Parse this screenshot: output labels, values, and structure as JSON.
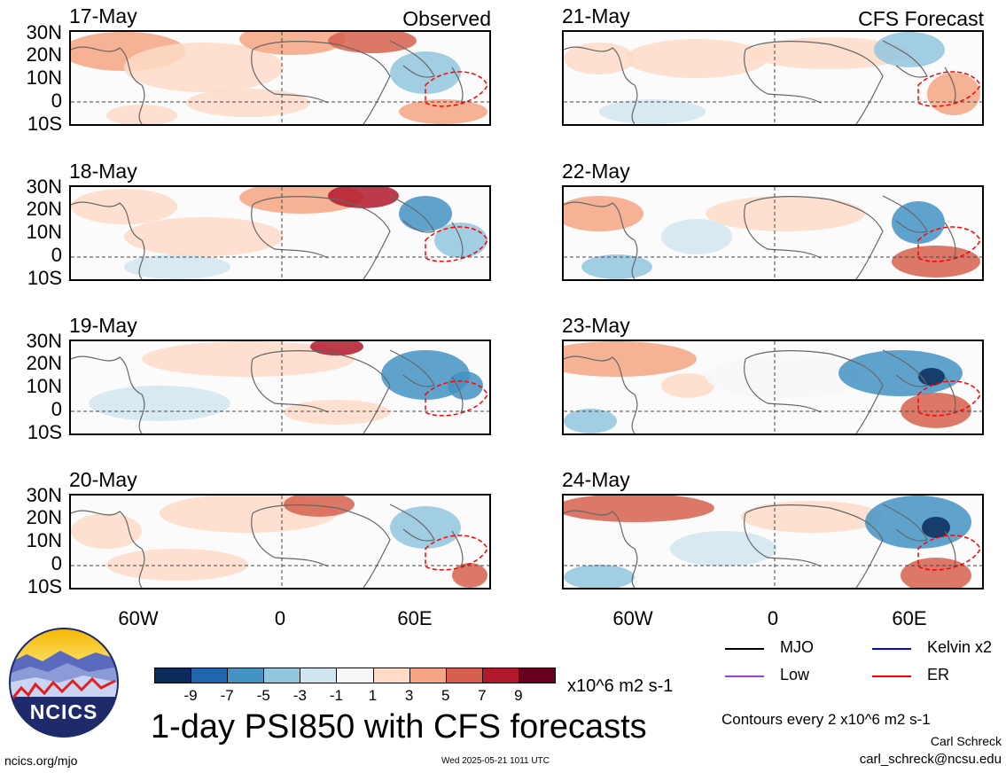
{
  "header": {
    "observed_label": "Observed",
    "forecast_label": "CFS Forecast"
  },
  "panels_left": [
    {
      "date": "17-May"
    },
    {
      "date": "18-May"
    },
    {
      "date": "19-May"
    },
    {
      "date": "20-May"
    }
  ],
  "panels_right": [
    {
      "date": "21-May"
    },
    {
      "date": "22-May"
    },
    {
      "date": "23-May"
    },
    {
      "date": "24-May"
    }
  ],
  "lat_labels": [
    "30N",
    "20N",
    "10N",
    "0",
    "10S"
  ],
  "lon_labels": [
    "60W",
    "0",
    "60E"
  ],
  "colorbar": {
    "ticks": [
      "-9",
      "-7",
      "-5",
      "-3",
      "-1",
      "1",
      "3",
      "5",
      "7",
      "9"
    ],
    "colors": [
      "#0b2b5c",
      "#2166ac",
      "#4393c3",
      "#92c5de",
      "#d1e5f0",
      "#f7f7f7",
      "#fddbc7",
      "#f4a582",
      "#d6604d",
      "#b2182b",
      "#67001f"
    ],
    "units": "x10^6 m2 s-1"
  },
  "legend": {
    "items": [
      {
        "label": "MJO",
        "color": "#000000"
      },
      {
        "label": "Kelvin x2",
        "color": "#0000ff"
      },
      {
        "label": "Low",
        "color": "#a040d0"
      },
      {
        "label": "ER",
        "color": "#ff0000"
      }
    ],
    "contours_note": "Contours every 2 x10^6 m2 s-1"
  },
  "footer": {
    "title": "1-day PSI850 with CFS forecasts",
    "logo_text": "NCICS",
    "url": "ncics.org/mjo",
    "timestamp": "Wed 2025-05-21 1011 UTC",
    "author": "Carl Schreck",
    "email": "carl_schreck@ncsu.edu"
  }
}
